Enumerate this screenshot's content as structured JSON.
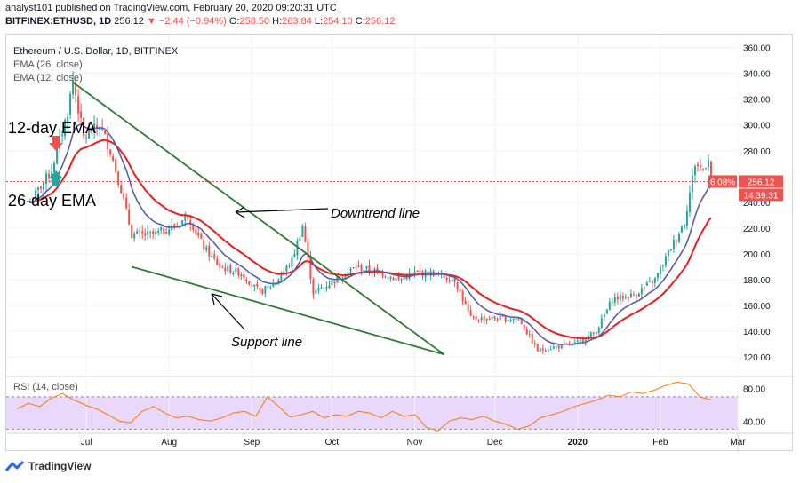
{
  "header": {
    "publisher": "analyst101 published on TradingView.com, February 20, 2020 09:20:31 UTC",
    "symbol": "BITFINEX:ETHUSD, 1D",
    "last": "256.12",
    "change": "−2.44 (−0.94%)",
    "o_label": "O:",
    "o": "258.50",
    "h_label": "H:",
    "h": "263.84",
    "l_label": "L:",
    "l": "254.10",
    "c_label": "C:",
    "c": "256.12"
  },
  "footer": {
    "brand": "TradingView"
  },
  "colors": {
    "up": "#26a69a",
    "down": "#ef5350",
    "ema26": "#e91e1e",
    "ema12": "#5b5ea6",
    "trend": "#2e7d32",
    "rsi": "#f57c00",
    "rsi_band": "#e9d8fb"
  },
  "chart_data": [
    {
      "type": "candlestick",
      "title": "Ethereum / U.S. Dollar, 1D, BITFINEX",
      "legend": [
        "EMA (26, close)",
        "EMA (12, close)"
      ],
      "ylim": [
        105,
        370
      ],
      "y_ticks": [
        120,
        140,
        160,
        180,
        200,
        220,
        240,
        280,
        300,
        320,
        340,
        360
      ],
      "x_ticks": [
        "Jul",
        "Aug",
        "Sep",
        "Oct",
        "Nov",
        "Dec",
        "2020",
        "Feb",
        "Mar"
      ],
      "price_label": "256.12",
      "change_label": "6.08%",
      "countdown": "14:39:31",
      "close_path": [
        [
          "2019-06-10",
          240
        ],
        [
          "2019-06-18",
          265
        ],
        [
          "2019-06-24",
          310
        ],
        [
          "2019-06-26",
          335
        ],
        [
          "2019-06-30",
          290
        ],
        [
          "2019-07-06",
          300
        ],
        [
          "2019-07-10",
          280
        ],
        [
          "2019-07-14",
          250
        ],
        [
          "2019-07-18",
          215
        ],
        [
          "2019-07-26",
          215
        ],
        [
          "2019-08-04",
          222
        ],
        [
          "2019-08-08",
          230
        ],
        [
          "2019-08-14",
          205
        ],
        [
          "2019-08-20",
          190
        ],
        [
          "2019-08-28",
          185
        ],
        [
          "2019-09-04",
          170
        ],
        [
          "2019-09-10",
          178
        ],
        [
          "2019-09-16",
          195
        ],
        [
          "2019-09-20",
          222
        ],
        [
          "2019-09-24",
          170
        ],
        [
          "2019-10-01",
          178
        ],
        [
          "2019-10-10",
          190
        ],
        [
          "2019-10-20",
          185
        ],
        [
          "2019-10-26",
          180
        ],
        [
          "2019-11-01",
          185
        ],
        [
          "2019-11-08",
          185
        ],
        [
          "2019-11-16",
          180
        ],
        [
          "2019-11-22",
          150
        ],
        [
          "2019-12-01",
          150
        ],
        [
          "2019-12-10",
          150
        ],
        [
          "2019-12-17",
          125
        ],
        [
          "2019-12-24",
          128
        ],
        [
          "2019-12-31",
          130
        ],
        [
          "2020-01-08",
          140
        ],
        [
          "2020-01-14",
          165
        ],
        [
          "2020-01-22",
          168
        ],
        [
          "2020-01-30",
          180
        ],
        [
          "2020-02-05",
          205
        ],
        [
          "2020-02-10",
          225
        ],
        [
          "2020-02-14",
          270
        ],
        [
          "2020-02-17",
          265
        ],
        [
          "2020-02-19",
          275
        ],
        [
          "2020-02-20",
          256
        ]
      ],
      "trendlines": [
        {
          "name": "Downtrend line",
          "from": [
            "2019-06-26",
            333
          ],
          "to": [
            "2019-11-12",
            122
          ]
        },
        {
          "name": "Support line",
          "from": [
            "2019-07-18",
            190
          ],
          "to": [
            "2019-11-12",
            122
          ]
        }
      ],
      "annotations": [
        "12-day EMA",
        "26-day EMA",
        "Downtrend line",
        "Support line"
      ]
    },
    {
      "type": "line",
      "title": "RSI (14, close)",
      "ylim": [
        25,
        95
      ],
      "y_ticks": [
        40,
        80
      ],
      "band": [
        30,
        70
      ],
      "series": [
        {
          "name": "RSI (14, close)",
          "values": [
            55,
            62,
            58,
            68,
            74,
            66,
            60,
            55,
            48,
            40,
            38,
            52,
            58,
            50,
            44,
            46,
            42,
            40,
            44,
            50,
            52,
            46,
            70,
            58,
            45,
            48,
            52,
            44,
            48,
            46,
            52,
            50,
            44,
            52,
            46,
            48,
            32,
            28,
            40,
            44,
            42,
            46,
            40,
            36,
            30,
            34,
            44,
            48,
            52,
            58,
            62,
            66,
            72,
            70,
            76,
            74,
            78,
            84,
            88,
            86,
            70,
            66
          ]
        }
      ]
    }
  ]
}
